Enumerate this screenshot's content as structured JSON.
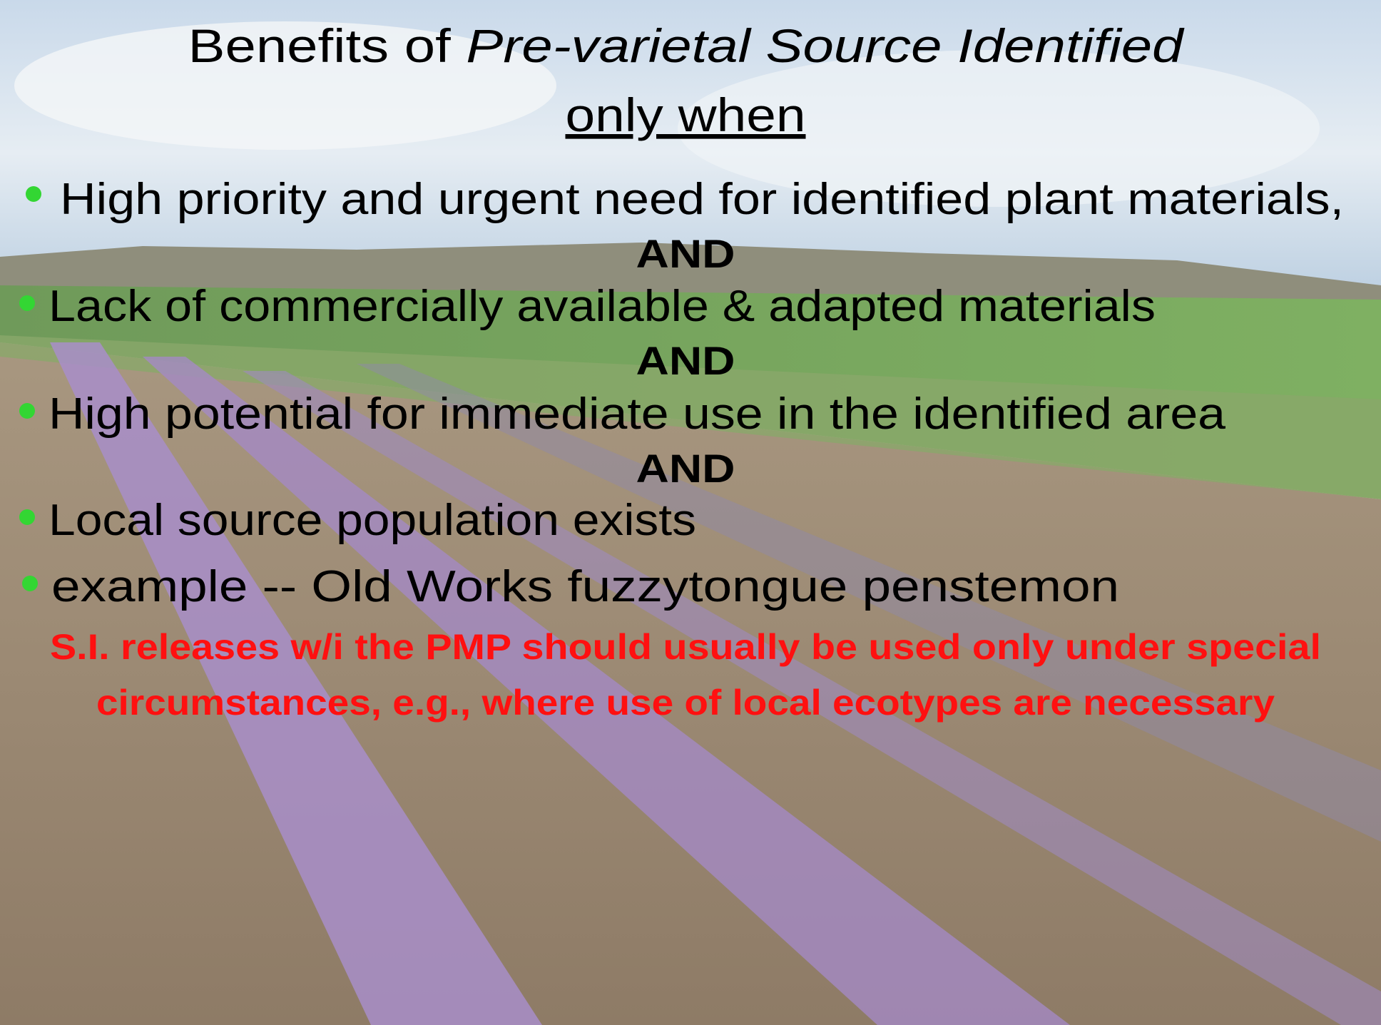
{
  "title": {
    "plain": "Benefits of",
    "italic": "Pre-varietal Source Identified",
    "line2": "only when"
  },
  "bullets": [
    "High priority and urgent need for identified plant materials,",
    "Lack of commercially available & adapted materials",
    "High potential for immediate use in the identified area",
    "Local source population exists",
    "example -- Old Works fuzzytongue penstemon"
  ],
  "connectors": [
    "AND",
    "AND",
    "AND"
  ],
  "note": [
    "S.I. releases w/i the PMP should usually be used only under special",
    "circumstances, e.g., where use of local ecotypes are necessary"
  ]
}
